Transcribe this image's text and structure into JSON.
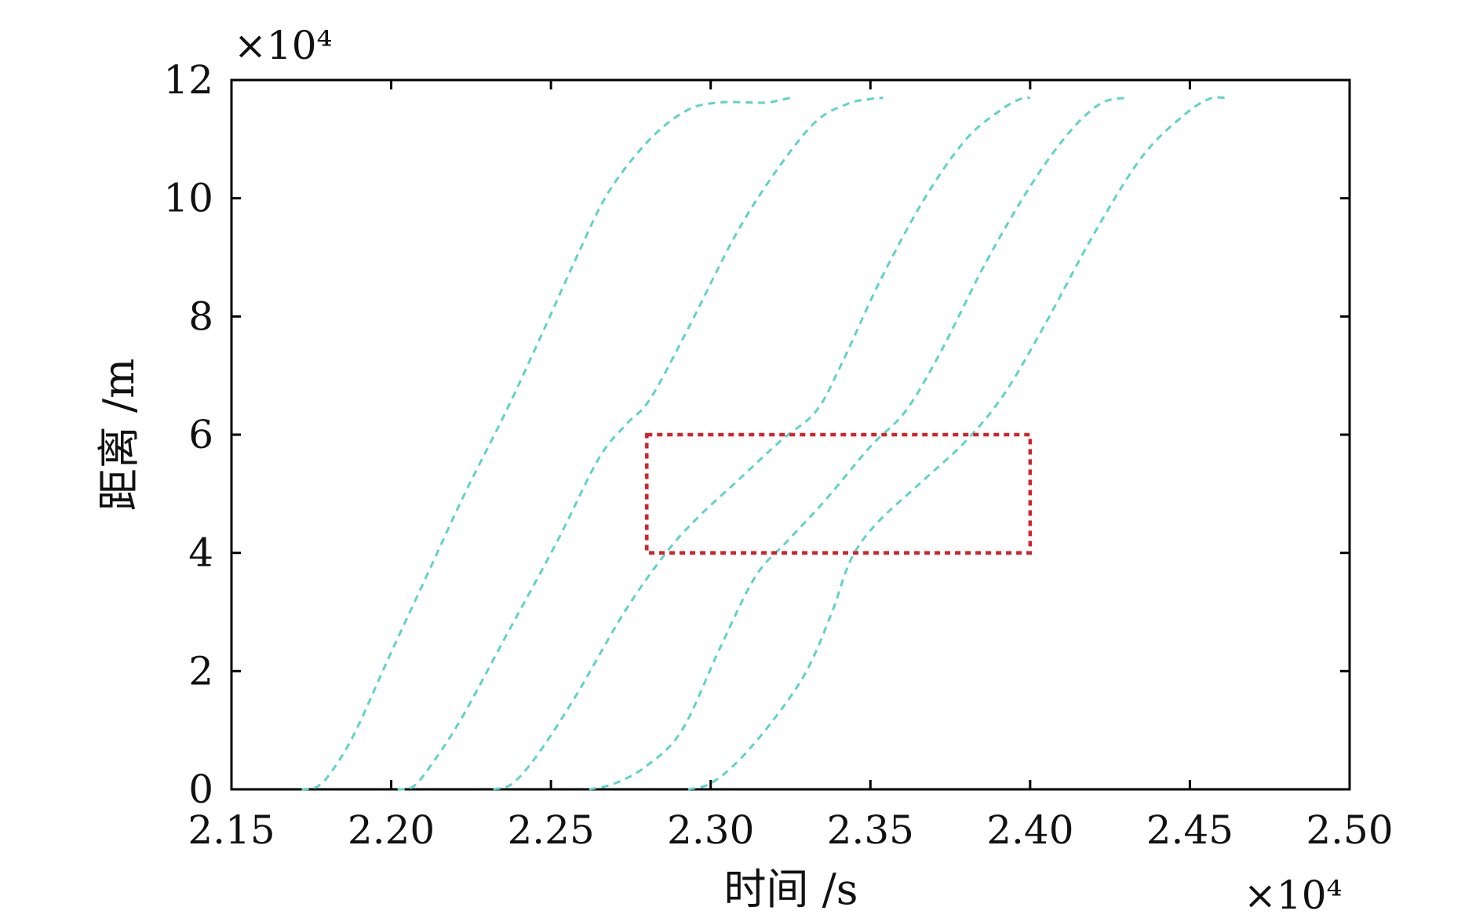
{
  "chart_data": {
    "type": "line",
    "title": "",
    "xlabel": "时间 /s",
    "ylabel": "距离 /m",
    "x_multiplier": "×10⁴",
    "y_multiplier": "×10⁴",
    "xlim": [
      2.15,
      2.5
    ],
    "ylim": [
      0,
      12
    ],
    "xticks": [
      "2.15",
      "2.20",
      "2.25",
      "2.30",
      "2.35",
      "2.40",
      "2.45",
      "2.50"
    ],
    "yticks": [
      "0",
      "2",
      "4",
      "6",
      "8",
      "10",
      "12"
    ],
    "xtick_values": [
      2.15,
      2.2,
      2.25,
      2.3,
      2.35,
      2.4,
      2.45,
      2.5
    ],
    "ytick_values": [
      0,
      2,
      4,
      6,
      8,
      10,
      12
    ],
    "grid": false,
    "series_color": "#5fd3c6",
    "series_style": "dashed",
    "series": [
      {
        "x": [
          2.172,
          2.177,
          2.182,
          2.189,
          2.199,
          2.211,
          2.223,
          2.236,
          2.248,
          2.258,
          2.268,
          2.281,
          2.293,
          2.303,
          2.312,
          2.318,
          2.325
        ],
        "y": [
          0.0,
          0.05,
          0.35,
          1.0,
          2.2,
          3.6,
          5.0,
          6.4,
          7.8,
          9.0,
          10.1,
          11.0,
          11.5,
          11.62,
          11.62,
          11.62,
          11.7
        ]
      },
      {
        "x": [
          2.202,
          2.207,
          2.213,
          2.222,
          2.236,
          2.252,
          2.265,
          2.274,
          2.281,
          2.293,
          2.308,
          2.321,
          2.333,
          2.343,
          2.35,
          2.354
        ],
        "y": [
          0.0,
          0.05,
          0.45,
          1.2,
          2.6,
          4.2,
          5.6,
          6.2,
          6.6,
          7.8,
          9.4,
          10.5,
          11.3,
          11.6,
          11.68,
          11.7
        ]
      },
      {
        "x": [
          2.232,
          2.238,
          2.246,
          2.258,
          2.273,
          2.286,
          2.296,
          2.308,
          2.322,
          2.333,
          2.341,
          2.353,
          2.367,
          2.38,
          2.391,
          2.397,
          2.4
        ],
        "y": [
          0.0,
          0.1,
          0.6,
          1.6,
          3.0,
          4.0,
          4.6,
          5.2,
          5.9,
          6.4,
          7.2,
          8.6,
          10.0,
          11.0,
          11.5,
          11.68,
          11.7
        ]
      },
      {
        "x": [
          2.262,
          2.27,
          2.28,
          2.291,
          2.303,
          2.314,
          2.324,
          2.336,
          2.35,
          2.361,
          2.372,
          2.386,
          2.4,
          2.412,
          2.422,
          2.43
        ],
        "y": [
          0.0,
          0.1,
          0.4,
          1.0,
          2.4,
          3.6,
          4.2,
          4.9,
          5.8,
          6.4,
          7.4,
          8.9,
          10.2,
          11.1,
          11.6,
          11.7
        ]
      },
      {
        "x": [
          2.293,
          2.3,
          2.309,
          2.32,
          2.33,
          2.338,
          2.344,
          2.352,
          2.366,
          2.38,
          2.392,
          2.405,
          2.42,
          2.435,
          2.448,
          2.456,
          2.461
        ],
        "y": [
          0.0,
          0.1,
          0.5,
          1.2,
          2.0,
          3.0,
          3.9,
          4.5,
          5.2,
          5.9,
          6.7,
          7.9,
          9.4,
          10.7,
          11.4,
          11.68,
          11.7
        ]
      }
    ],
    "annotation_box": {
      "x0": 2.28,
      "x1": 2.4,
      "y0": 4,
      "y1": 6,
      "color": "#d2232a",
      "style": "dotted"
    }
  }
}
